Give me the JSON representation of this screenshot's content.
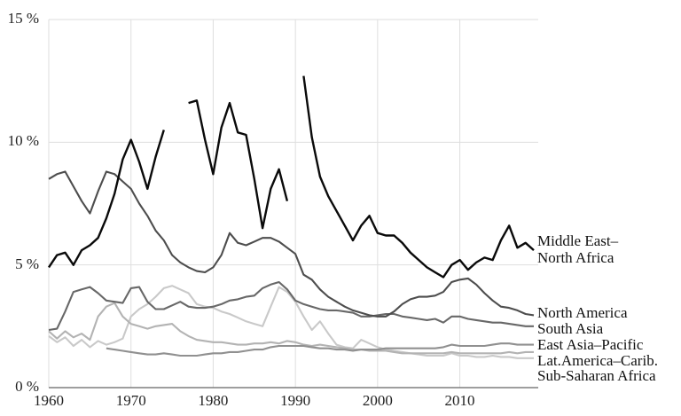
{
  "chart_data": {
    "type": "line",
    "title": "",
    "xlabel": "",
    "ylabel": "",
    "grid": true,
    "legend_position": "right-end-of-lines",
    "x_range": [
      1960,
      2019
    ],
    "y_range": [
      0,
      15
    ],
    "x_ticks": [
      "1960",
      "1970",
      "1980",
      "1990",
      "2000",
      "2010"
    ],
    "x_tick_years": [
      1960,
      1970,
      1980,
      1990,
      2000,
      2010
    ],
    "y_ticks": [
      "0 %",
      "5 %",
      "10 %",
      "15 %"
    ],
    "y_tick_values": [
      0,
      5,
      10,
      15
    ],
    "x": [
      1960,
      1961,
      1962,
      1963,
      1964,
      1965,
      1966,
      1967,
      1968,
      1969,
      1970,
      1971,
      1972,
      1973,
      1974,
      1975,
      1976,
      1977,
      1978,
      1979,
      1980,
      1981,
      1982,
      1983,
      1984,
      1985,
      1986,
      1987,
      1988,
      1989,
      1990,
      1991,
      1992,
      1993,
      1994,
      1995,
      1996,
      1997,
      1998,
      1999,
      2000,
      2001,
      2002,
      2003,
      2004,
      2005,
      2006,
      2007,
      2008,
      2009,
      2010,
      2011,
      2012,
      2013,
      2014,
      2015,
      2016,
      2017,
      2018,
      2019
    ],
    "series": [
      {
        "name": "middle-east-north-africa",
        "label": "Middle East–\nNorth Africa",
        "color": "#0a0a0a",
        "width": 2.4,
        "values": [
          4.9,
          5.4,
          5.5,
          5.0,
          5.6,
          5.8,
          6.1,
          6.9,
          7.9,
          9.3,
          10.1,
          9.2,
          8.1,
          9.4,
          10.5,
          null,
          null,
          11.6,
          11.7,
          10.1,
          8.7,
          10.6,
          11.6,
          10.4,
          10.3,
          8.5,
          6.5,
          8.1,
          8.9,
          7.6,
          null,
          12.7,
          10.2,
          8.6,
          7.8,
          7.2,
          6.6,
          6.0,
          6.6,
          7.0,
          6.3,
          6.2,
          6.2,
          5.9,
          5.5,
          5.2,
          4.9,
          4.7,
          4.5,
          5.0,
          5.2,
          4.8,
          5.1,
          5.3,
          5.2,
          6.0,
          6.6,
          5.7,
          5.9,
          5.6
        ]
      },
      {
        "name": "north-america",
        "label": "North America",
        "color": "#4d4d4d",
        "width": 2.1,
        "values": [
          8.5,
          8.7,
          8.8,
          8.2,
          7.6,
          7.1,
          8.0,
          8.8,
          8.7,
          8.4,
          8.1,
          7.5,
          7.0,
          6.4,
          6.0,
          5.4,
          5.1,
          4.9,
          4.75,
          4.7,
          4.9,
          5.4,
          6.3,
          5.9,
          5.8,
          5.95,
          6.1,
          6.1,
          5.95,
          5.7,
          5.45,
          4.6,
          4.4,
          4.0,
          3.7,
          3.5,
          3.3,
          3.15,
          3.05,
          2.95,
          2.9,
          2.9,
          3.1,
          3.4,
          3.6,
          3.7,
          3.7,
          3.75,
          3.9,
          4.3,
          4.4,
          4.45,
          4.2,
          3.85,
          3.55,
          3.3,
          3.25,
          3.15,
          3.0,
          2.95
        ]
      },
      {
        "name": "south-asia",
        "label": "South Asia",
        "color": "#686868",
        "width": 2.1,
        "values": [
          2.35,
          2.4,
          3.1,
          3.9,
          4.0,
          4.1,
          3.85,
          3.55,
          3.5,
          3.45,
          4.05,
          4.1,
          3.5,
          3.2,
          3.2,
          3.35,
          3.5,
          3.3,
          3.25,
          3.25,
          3.3,
          3.4,
          3.55,
          3.6,
          3.7,
          3.75,
          4.05,
          4.2,
          4.3,
          4.0,
          3.55,
          3.4,
          3.3,
          3.2,
          3.15,
          3.15,
          3.1,
          3.05,
          2.9,
          2.9,
          2.95,
          3.0,
          3.0,
          2.9,
          2.85,
          2.8,
          2.75,
          2.8,
          2.65,
          2.9,
          2.9,
          2.8,
          2.75,
          2.7,
          2.65,
          2.65,
          2.6,
          2.55,
          2.5,
          2.5
        ]
      },
      {
        "name": "east-asia-pacific",
        "label": "East Asia–Pacific",
        "color": "#909090",
        "width": 2.1,
        "values": [
          null,
          null,
          null,
          null,
          null,
          null,
          null,
          1.6,
          1.55,
          1.5,
          1.45,
          1.4,
          1.35,
          1.35,
          1.4,
          1.35,
          1.3,
          1.3,
          1.3,
          1.35,
          1.4,
          1.4,
          1.45,
          1.45,
          1.5,
          1.55,
          1.55,
          1.65,
          1.7,
          1.7,
          1.7,
          1.7,
          1.65,
          1.6,
          1.6,
          1.55,
          1.55,
          1.5,
          1.55,
          1.55,
          1.55,
          1.6,
          1.6,
          1.6,
          1.6,
          1.6,
          1.6,
          1.6,
          1.65,
          1.75,
          1.7,
          1.7,
          1.7,
          1.7,
          1.75,
          1.8,
          1.8,
          1.75,
          1.75,
          1.75
        ]
      },
      {
        "name": "lat-america-carib",
        "label": "Lat.America–Carib.",
        "color": "#b3b3b3",
        "width": 2.1,
        "values": [
          2.3,
          2.0,
          2.3,
          2.05,
          2.2,
          1.95,
          2.9,
          3.3,
          3.45,
          2.9,
          2.6,
          2.5,
          2.4,
          2.5,
          2.55,
          2.6,
          2.3,
          2.1,
          1.95,
          1.9,
          1.85,
          1.85,
          1.8,
          1.75,
          1.75,
          1.8,
          1.8,
          1.85,
          1.8,
          1.9,
          1.85,
          1.75,
          1.7,
          1.75,
          1.7,
          1.65,
          1.6,
          1.55,
          1.55,
          1.5,
          1.5,
          1.5,
          1.45,
          1.4,
          1.4,
          1.4,
          1.4,
          1.4,
          1.4,
          1.45,
          1.4,
          1.4,
          1.4,
          1.4,
          1.4,
          1.4,
          1.45,
          1.4,
          1.45,
          1.45
        ]
      },
      {
        "name": "sub-saharan-africa",
        "label": "Sub-Saharan Africa",
        "color": "#c9c9c9",
        "width": 2.1,
        "values": [
          2.1,
          1.85,
          2.05,
          1.7,
          1.95,
          1.65,
          1.9,
          1.75,
          1.85,
          2.0,
          2.9,
          3.2,
          3.4,
          3.7,
          4.05,
          4.15,
          4.0,
          3.85,
          3.4,
          3.3,
          3.25,
          3.1,
          3.0,
          2.85,
          2.7,
          2.6,
          2.5,
          3.3,
          4.1,
          3.9,
          3.5,
          2.9,
          2.35,
          2.7,
          2.2,
          1.75,
          1.65,
          1.6,
          1.95,
          1.8,
          1.65,
          1.55,
          1.5,
          1.45,
          1.4,
          1.35,
          1.3,
          1.3,
          1.3,
          1.4,
          1.3,
          1.3,
          1.25,
          1.25,
          1.3,
          1.25,
          1.25,
          1.2,
          1.2,
          1.2
        ]
      }
    ]
  }
}
